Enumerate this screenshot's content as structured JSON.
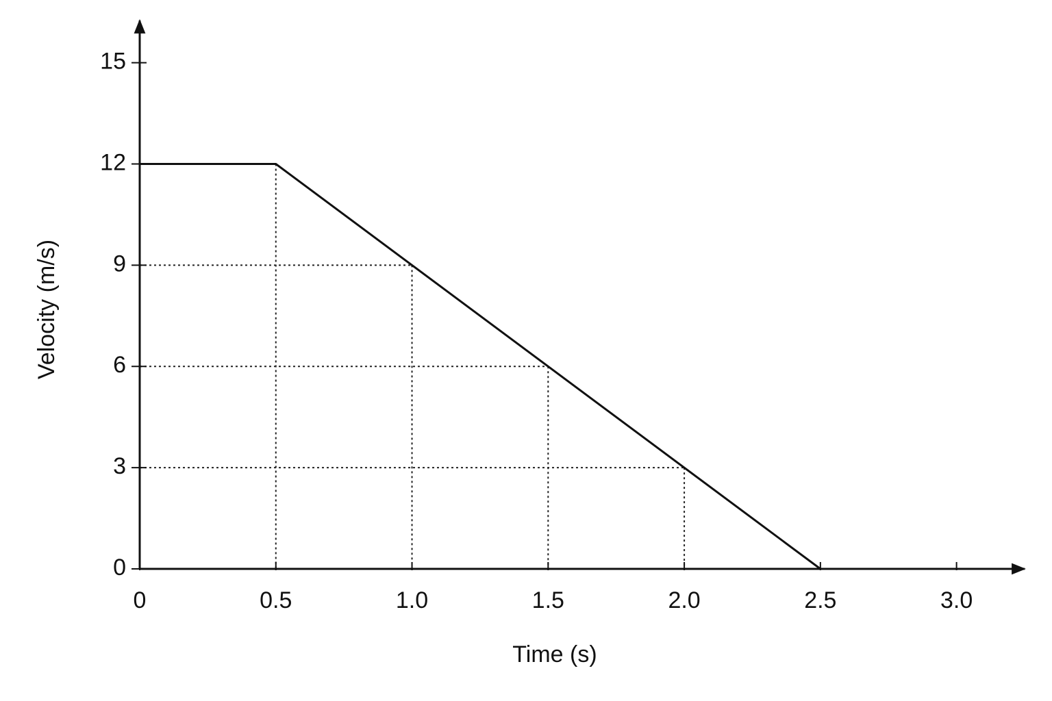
{
  "chart_data": {
    "type": "line",
    "x_label": "Time (s)",
    "y_label": "Velocity (m/s)",
    "x": [
      0,
      0.5,
      2.5
    ],
    "series": [
      {
        "color": "#111111",
        "values": [
          12,
          12,
          0
        ]
      }
    ],
    "reference_points": {
      "x": [
        0.5,
        1.0,
        1.5,
        2.0
      ],
      "y": [
        12,
        9,
        6,
        3
      ]
    },
    "xlim": [
      0,
      3.25
    ],
    "ylim": [
      0,
      16.25
    ],
    "xticks": [
      0,
      0.5,
      {
        "value": 1,
        "label": "1.0"
      },
      1.5,
      {
        "value": 2,
        "label": "2.0"
      },
      2.5,
      {
        "value": 3,
        "label": "3.0"
      }
    ],
    "yticks": [
      0,
      3,
      6,
      9,
      12,
      15
    ]
  }
}
